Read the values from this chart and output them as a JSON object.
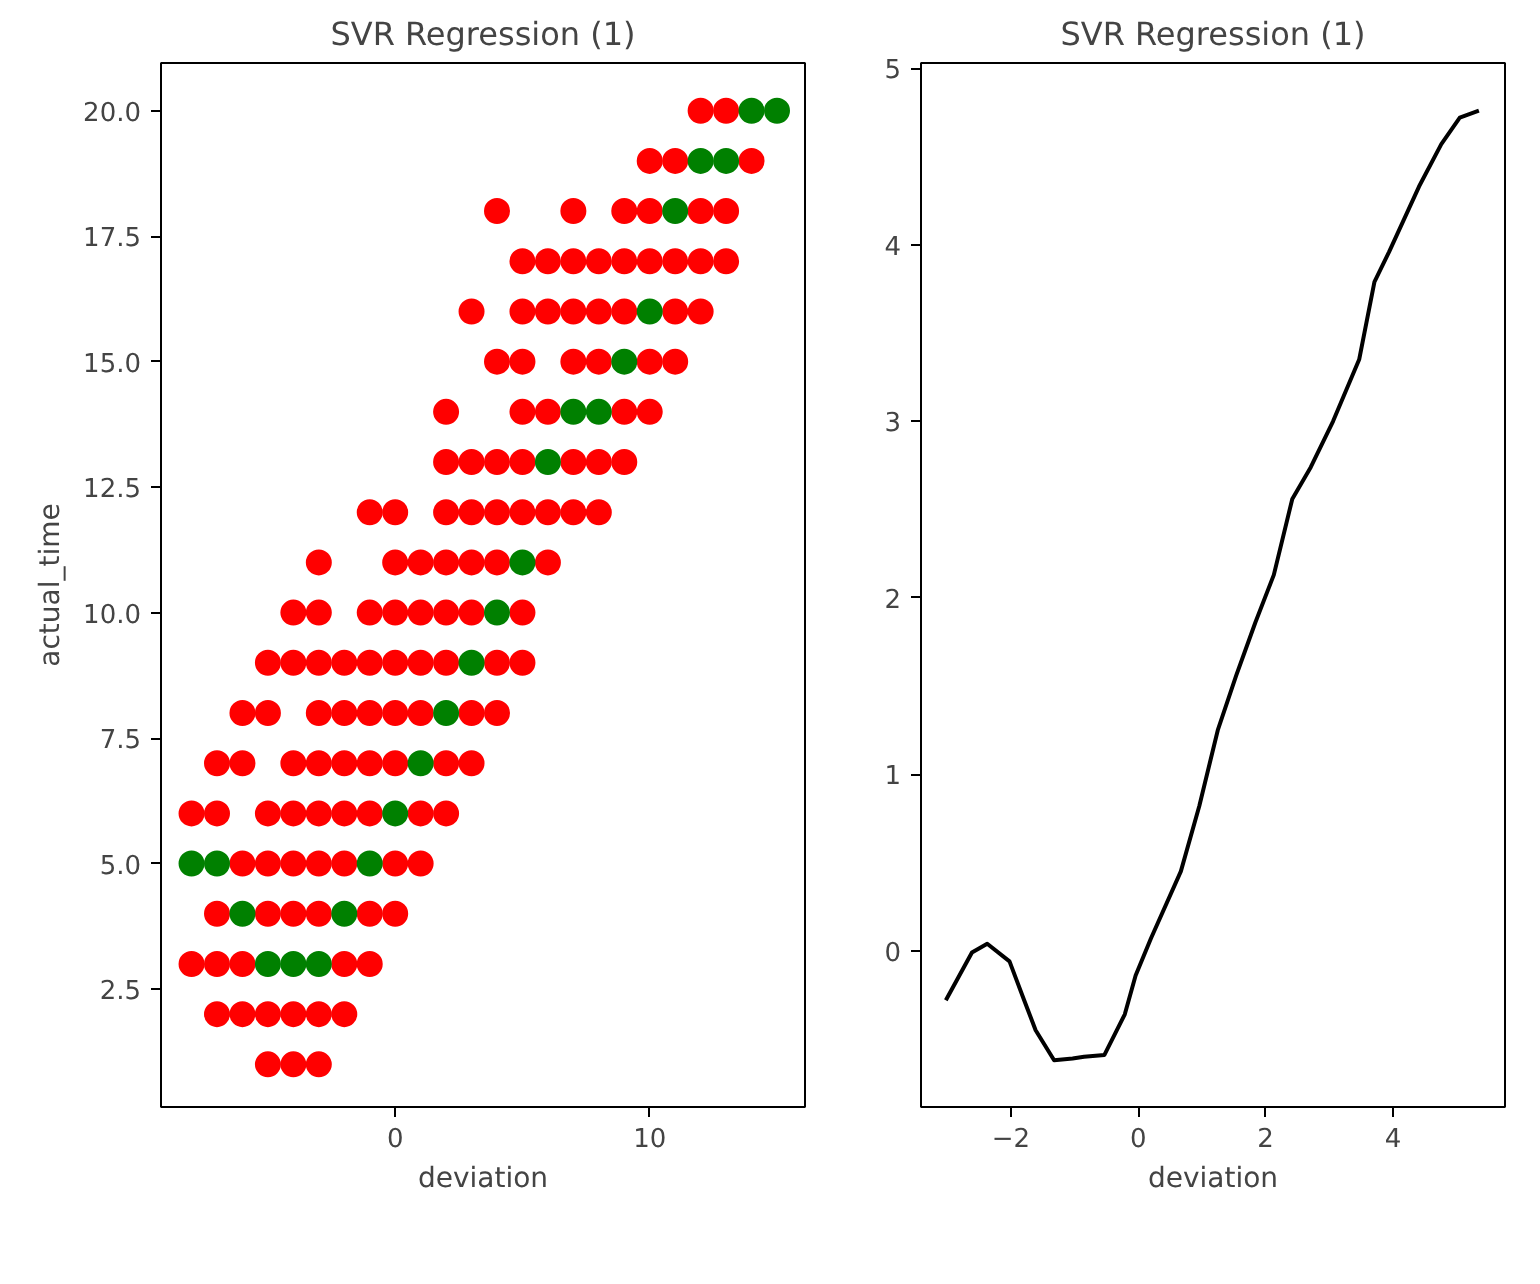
{
  "chart_data": [
    {
      "type": "scatter",
      "title": "SVR Regression (1)",
      "xlabel": "deviation",
      "ylabel": "actual_time",
      "marker": "circle",
      "grid": false,
      "xlim": [
        -9.2,
        16.1
      ],
      "ylim": [
        0.15,
        20.95
      ],
      "xticks": [
        0,
        10
      ],
      "yticks": [
        {
          "value": 2.5,
          "label": "2.5"
        },
        {
          "value": 5,
          "label": "5.0"
        },
        {
          "value": 7.5,
          "label": "7.5"
        },
        {
          "value": 10,
          "label": "10.0"
        },
        {
          "value": 12.5,
          "label": "12.5"
        },
        {
          "value": 15,
          "label": "15.0"
        },
        {
          "value": 17.5,
          "label": "17.5"
        },
        {
          "value": 20,
          "label": "20.0"
        }
      ],
      "series": [
        {
          "color": "#ff0000",
          "x": [
            12,
            13,
            10,
            11,
            14,
            4,
            7,
            9,
            10,
            12,
            13,
            5,
            6,
            7,
            8,
            9,
            10,
            11,
            12,
            13,
            3,
            5,
            6,
            7,
            8,
            9,
            11,
            12,
            4,
            5,
            7,
            8,
            10,
            11,
            2,
            5,
            6,
            9,
            10,
            2,
            3,
            4,
            5,
            7,
            8,
            9,
            -1,
            0,
            2,
            3,
            4,
            5,
            6,
            7,
            8,
            -3,
            0,
            1,
            2,
            3,
            4,
            6,
            -4,
            -3,
            -1,
            0,
            1,
            2,
            3,
            5,
            -5,
            -4,
            -3,
            -2,
            -1,
            0,
            1,
            2,
            4,
            5,
            -6,
            -5,
            -3,
            -2,
            -1,
            0,
            1,
            3,
            4,
            -7,
            -6,
            -4,
            -3,
            -2,
            -1,
            0,
            2,
            3,
            -8,
            -7,
            -5,
            -4,
            -3,
            -2,
            -1,
            1,
            2,
            -6,
            -5,
            -4,
            -3,
            -2,
            0,
            1,
            -7,
            -5,
            -4,
            -3,
            -1,
            0,
            -8,
            -7,
            -6,
            -2,
            -1,
            -7,
            -6,
            -5,
            -4,
            -3,
            -2,
            -5,
            -4,
            -3
          ],
          "values": [
            20,
            20,
            19,
            19,
            19,
            18,
            18,
            18,
            18,
            18,
            18,
            17,
            17,
            17,
            17,
            17,
            17,
            17,
            17,
            17,
            16,
            16,
            16,
            16,
            16,
            16,
            16,
            16,
            15,
            15,
            15,
            15,
            15,
            15,
            14,
            14,
            14,
            14,
            14,
            13,
            13,
            13,
            13,
            13,
            13,
            13,
            12,
            12,
            12,
            12,
            12,
            12,
            12,
            12,
            12,
            11,
            11,
            11,
            11,
            11,
            11,
            11,
            10,
            10,
            10,
            10,
            10,
            10,
            10,
            10,
            9,
            9,
            9,
            9,
            9,
            9,
            9,
            9,
            9,
            9,
            8,
            8,
            8,
            8,
            8,
            8,
            8,
            8,
            8,
            7,
            7,
            7,
            7,
            7,
            7,
            7,
            7,
            7,
            6,
            6,
            6,
            6,
            6,
            6,
            6,
            6,
            6,
            5,
            5,
            5,
            5,
            5,
            5,
            5,
            4,
            4,
            4,
            4,
            4,
            4,
            3,
            3,
            3,
            3,
            3,
            2,
            2,
            2,
            2,
            2,
            2,
            1,
            1,
            1
          ]
        },
        {
          "color": "#008000",
          "x": [
            14,
            15,
            12,
            13,
            11,
            10,
            9,
            7,
            8,
            6,
            5,
            4,
            3,
            2,
            1,
            0,
            -8,
            -7,
            -1,
            -6,
            -2,
            -5,
            -4,
            -3
          ],
          "values": [
            20,
            20,
            19,
            19,
            18,
            16,
            15,
            14,
            14,
            13,
            11,
            10,
            9,
            8,
            7,
            6,
            5,
            5,
            5,
            4,
            4,
            3,
            3,
            3
          ]
        }
      ]
    },
    {
      "type": "line",
      "title": "SVR Regression (1)",
      "xlabel": "deviation",
      "grid": false,
      "xlim": [
        -3.41,
        5.76
      ],
      "ylim": [
        -0.885,
        5.03
      ],
      "xticks": [
        -2,
        0,
        2,
        4
      ],
      "yticks": [
        0,
        1,
        2,
        3,
        4,
        5
      ],
      "series": [
        {
          "color": "#000000",
          "x": [
            -3.02,
            -2.61,
            -2.37,
            -2.02,
            -1.79,
            -1.61,
            -1.32,
            -1.03,
            -0.85,
            -0.53,
            -0.21,
            -0.04,
            0.2,
            0.67,
            0.96,
            1.25,
            1.54,
            1.84,
            2.13,
            2.42,
            2.71,
            3.06,
            3.47,
            3.71,
            3.94,
            4.41,
            4.76,
            5.05,
            5.35
          ],
          "values": [
            -0.28,
            -0.01,
            0.04,
            -0.06,
            -0.28,
            -0.45,
            -0.62,
            -0.61,
            -0.6,
            -0.59,
            -0.36,
            -0.14,
            0.07,
            0.45,
            0.82,
            1.25,
            1.56,
            1.86,
            2.13,
            2.56,
            2.74,
            3.0,
            3.35,
            3.79,
            3.96,
            4.33,
            4.57,
            4.72,
            4.76
          ]
        }
      ]
    }
  ]
}
